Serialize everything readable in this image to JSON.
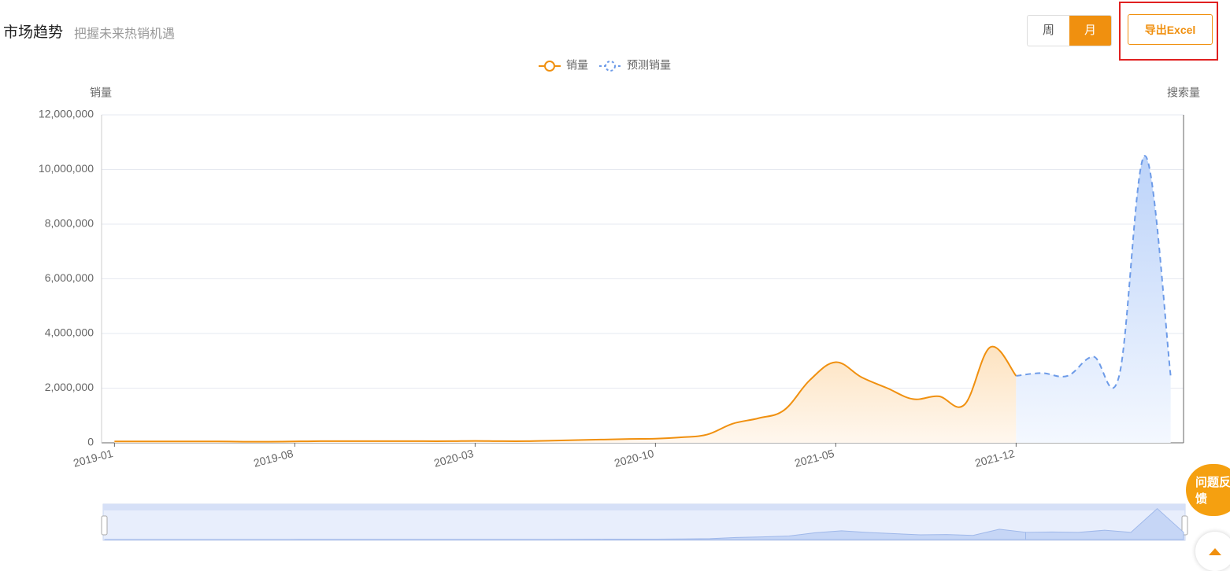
{
  "header": {
    "title": "市场趋势",
    "subtitle": "把握未来热销机遇",
    "toggle": [
      "周",
      "月"
    ],
    "export": "导出Excel"
  },
  "feedback": "问题反馈",
  "chart_data": {
    "type": "line",
    "y_axis_label": "销量",
    "y2_axis_label": "搜索量",
    "categories": [
      "2019-01",
      null,
      null,
      null,
      null,
      null,
      null,
      "2019-08",
      null,
      null,
      null,
      null,
      null,
      null,
      "2020-03",
      null,
      null,
      null,
      null,
      null,
      null,
      "2020-10",
      null,
      null,
      null,
      null,
      null,
      null,
      "2021-05",
      null,
      null,
      null,
      null,
      null,
      null,
      "2021-12",
      null,
      null,
      null,
      null,
      null,
      null
    ],
    "series": [
      {
        "name": "销量",
        "color": "#f0900f",
        "dashed": false,
        "values": [
          50000,
          50000,
          50000,
          50000,
          50000,
          40000,
          40000,
          50000,
          60000,
          60000,
          60000,
          60000,
          60000,
          60000,
          70000,
          60000,
          60000,
          80000,
          100000,
          120000,
          140000,
          150000,
          200000,
          300000,
          700000,
          900000,
          1200000,
          2300000,
          2950000,
          2400000,
          2000000,
          1600000,
          1700000,
          1400000,
          3500000,
          2450000,
          null,
          null,
          null,
          null,
          null,
          null
        ]
      },
      {
        "name": "预测销量",
        "color": "#6d9be8",
        "dashed": true,
        "values": [
          null,
          null,
          null,
          null,
          null,
          null,
          null,
          null,
          null,
          null,
          null,
          null,
          null,
          null,
          null,
          null,
          null,
          null,
          null,
          null,
          null,
          null,
          null,
          null,
          null,
          null,
          null,
          null,
          null,
          null,
          null,
          null,
          null,
          null,
          null,
          2450000,
          2550000,
          2450000,
          3150000,
          2450000,
          10500000,
          2450000
        ]
      }
    ],
    "ylim": [
      0,
      12000000
    ],
    "yticks": [
      0,
      {
        "value": 2000000,
        "label": "2,000,000"
      },
      {
        "value": 4000000,
        "label": "4,000,000"
      },
      {
        "value": 6000000,
        "label": "6,000,000"
      },
      {
        "value": 8000000,
        "label": "8,000,000"
      },
      {
        "value": 10000000,
        "label": "10,000,000"
      },
      {
        "value": 12000000,
        "label": "12,000,000"
      }
    ],
    "grid": true,
    "legend": "top"
  }
}
